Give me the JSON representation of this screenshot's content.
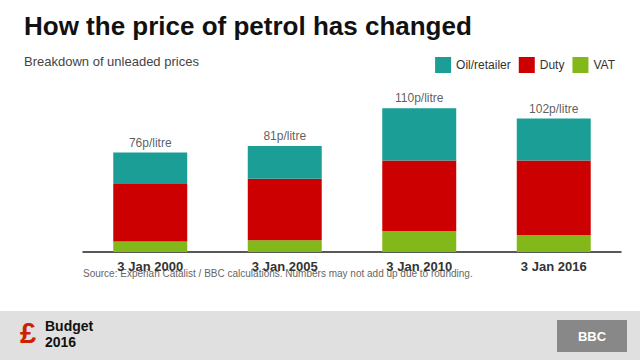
{
  "chart_data": {
    "type": "bar",
    "stacked": true,
    "title": "How the price of petrol has changed",
    "subtitle": "Breakdown of unleaded prices",
    "source": "Source: Experian Catalist / BBC calculations. Numbers may not add up due to rounding.",
    "annotations": [
      "£",
      "Budget\n2016",
      "BBC"
    ],
    "categories": [
      "3 Jan 2000",
      "3 Jan 2005",
      "3 Jan 2010",
      "3 Jan 2016"
    ],
    "series": [
      {
        "name": "VAT",
        "color": "#82b819",
        "values": [
          8,
          9,
          16,
          13
        ]
      },
      {
        "name": "Duty",
        "color": "#cc0000",
        "values": [
          44,
          47,
          54,
          57
        ]
      },
      {
        "name": "Oil/retailer",
        "color": "#1a9e96",
        "values": [
          24,
          25,
          40,
          32
        ]
      }
    ],
    "totals": {
      "values": [
        76,
        81,
        110,
        102
      ],
      "value_labels": [
        "76p/litre",
        "81p/litre",
        "110p/litre",
        "102p/litre"
      ]
    },
    "ylim": [
      0,
      130
    ],
    "tick_labels": "x",
    "grid": false,
    "legend": "top"
  }
}
